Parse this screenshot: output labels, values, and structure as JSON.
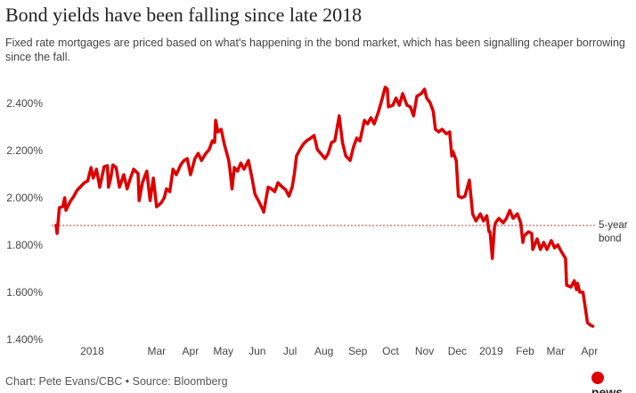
{
  "chart_data": {
    "type": "line",
    "title": "Bond yields have been falling since late 2018",
    "subtitle": "Fixed rate mortgages are priced based on what's happening in the bond market, which has been signalling cheaper borrowing since the fall.",
    "source": "Chart: Pete Evans/CBC • Source: Bloomberg",
    "logo": "news",
    "color": "#dd0000",
    "reference_value": 1.887,
    "reference_label": "5-year bond",
    "xlim": [
      -37,
      473
    ],
    "xticks": [
      {
        "value": 0,
        "label": "2018"
      },
      {
        "value": 59,
        "label": "Mar"
      },
      {
        "value": 90,
        "label": "Apr"
      },
      {
        "value": 120,
        "label": "May"
      },
      {
        "value": 151,
        "label": "Jun"
      },
      {
        "value": 181,
        "label": "Jul"
      },
      {
        "value": 212,
        "label": "Aug"
      },
      {
        "value": 243,
        "label": "Sep"
      },
      {
        "value": 273,
        "label": "Oct"
      },
      {
        "value": 304,
        "label": "Nov"
      },
      {
        "value": 334,
        "label": "Dec"
      },
      {
        "value": 365,
        "label": "2019"
      },
      {
        "value": 396,
        "label": "Feb"
      },
      {
        "value": 424,
        "label": "Mar"
      },
      {
        "value": 455,
        "label": "Apr"
      }
    ],
    "ylim": [
      1.4,
      2.5
    ],
    "yticks": [
      {
        "value": 1.4,
        "label": "1.400%"
      },
      {
        "value": 1.6,
        "label": "1.600%"
      },
      {
        "value": 1.8,
        "label": "1.800%"
      },
      {
        "value": 2.0,
        "label": "2.000%"
      },
      {
        "value": 2.2,
        "label": "2.200%"
      },
      {
        "value": 2.4,
        "label": "2.400%"
      }
    ],
    "x": [
      -33,
      -32,
      -30,
      -27,
      -25,
      -24,
      -20,
      -17,
      -14,
      -11,
      -7,
      -4,
      -1,
      1,
      4,
      7,
      11,
      14,
      15,
      17,
      19,
      22,
      25,
      29,
      32,
      35,
      38,
      42,
      43,
      46,
      50,
      53,
      56,
      59,
      63,
      66,
      68,
      71,
      74,
      77,
      81,
      84,
      87,
      90,
      94,
      97,
      100,
      104,
      107,
      110,
      112,
      113,
      115,
      118,
      121,
      125,
      126,
      128,
      130,
      133,
      136,
      139,
      143,
      146,
      149,
      152,
      156,
      157,
      161,
      164,
      167,
      170,
      174,
      177,
      180,
      183,
      185,
      187,
      190,
      193,
      196,
      200,
      203,
      206,
      209,
      213,
      216,
      219,
      222,
      226,
      229,
      232,
      236,
      239,
      242,
      245,
      249,
      252,
      255,
      258,
      262,
      265,
      268,
      270,
      271,
      275,
      278,
      281,
      284,
      288,
      291,
      294,
      297,
      301,
      304,
      306,
      309,
      312,
      314,
      317,
      320,
      324,
      327,
      329,
      330,
      333,
      335,
      338,
      341,
      345,
      348,
      351,
      355,
      358,
      361,
      363,
      364,
      366,
      368,
      369,
      372,
      376,
      379,
      382,
      385,
      389,
      392,
      394,
      395,
      399,
      402,
      403,
      407,
      410,
      413,
      416,
      420,
      423,
      426,
      429,
      433,
      434,
      438,
      441,
      443,
      444,
      446,
      449,
      451,
      453,
      456,
      458
    ],
    "values": [
      1.887,
      1.853,
      1.962,
      1.966,
      2.004,
      1.951,
      1.989,
      2.008,
      2.034,
      2.049,
      2.068,
      2.075,
      2.132,
      2.087,
      2.125,
      2.049,
      2.136,
      2.14,
      2.049,
      2.087,
      2.143,
      2.132,
      2.049,
      2.102,
      2.042,
      2.087,
      2.125,
      2.106,
      1.992,
      2.068,
      2.117,
      1.992,
      2.087,
      1.966,
      1.981,
      2.004,
      2.042,
      2.03,
      2.125,
      2.102,
      2.143,
      2.162,
      2.17,
      2.102,
      2.17,
      2.192,
      2.162,
      2.192,
      2.208,
      2.245,
      2.238,
      2.332,
      2.283,
      2.294,
      2.23,
      2.162,
      2.125,
      2.042,
      2.132,
      2.117,
      2.151,
      2.125,
      2.162,
      2.094,
      2.019,
      1.992,
      1.955,
      1.943,
      2.049,
      2.042,
      2.03,
      2.068,
      2.049,
      2.038,
      2.011,
      2.049,
      2.106,
      2.181,
      2.208,
      2.23,
      2.245,
      2.257,
      2.268,
      2.208,
      2.192,
      2.17,
      2.192,
      2.238,
      2.245,
      2.351,
      2.238,
      2.181,
      2.162,
      2.219,
      2.257,
      2.245,
      2.332,
      2.317,
      2.343,
      2.317,
      2.37,
      2.419,
      2.472,
      2.464,
      2.389,
      2.396,
      2.426,
      2.396,
      2.445,
      2.396,
      2.389,
      2.351,
      2.434,
      2.445,
      2.464,
      2.426,
      2.408,
      2.37,
      2.294,
      2.283,
      2.294,
      2.275,
      2.283,
      2.181,
      2.2,
      2.162,
      2.011,
      2.004,
      2.011,
      2.079,
      1.936,
      1.906,
      1.936,
      1.906,
      1.928,
      1.86,
      1.86,
      1.747,
      1.879,
      1.898,
      1.917,
      1.898,
      1.917,
      1.951,
      1.917,
      1.936,
      1.898,
      1.815,
      1.842,
      1.86,
      1.853,
      1.785,
      1.83,
      1.785,
      1.815,
      1.785,
      1.823,
      1.792,
      1.804,
      1.777,
      1.747,
      1.634,
      1.626,
      1.653,
      1.615,
      1.642,
      1.604,
      1.604,
      1.54,
      1.475,
      1.464,
      1.46
    ]
  }
}
